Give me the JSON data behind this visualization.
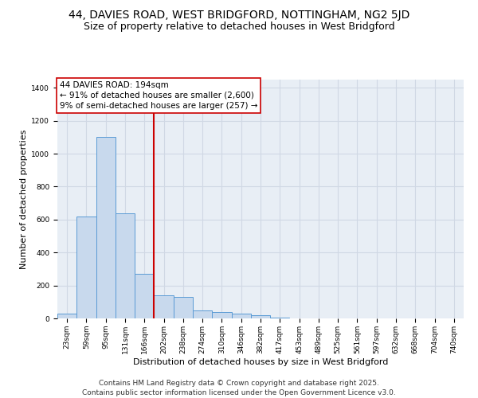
{
  "title_line1": "44, DAVIES ROAD, WEST BRIDGFORD, NOTTINGHAM, NG2 5JD",
  "title_line2": "Size of property relative to detached houses in West Bridgford",
  "xlabel": "Distribution of detached houses by size in West Bridgford",
  "ylabel": "Number of detached properties",
  "categories": [
    "23sqm",
    "59sqm",
    "95sqm",
    "131sqm",
    "166sqm",
    "202sqm",
    "238sqm",
    "274sqm",
    "310sqm",
    "346sqm",
    "382sqm",
    "417sqm",
    "453sqm",
    "489sqm",
    "525sqm",
    "561sqm",
    "597sqm",
    "632sqm",
    "668sqm",
    "704sqm",
    "740sqm"
  ],
  "values": [
    30,
    620,
    1100,
    640,
    270,
    140,
    130,
    50,
    40,
    30,
    20,
    5,
    2,
    1,
    1,
    0,
    0,
    0,
    0,
    0,
    0
  ],
  "bar_color": "#c8d9ed",
  "bar_edge_color": "#5b9bd5",
  "vline_x_index": 4.5,
  "vline_color": "#cc0000",
  "annotation_text": "44 DAVIES ROAD: 194sqm\n← 91% of detached houses are smaller (2,600)\n9% of semi-detached houses are larger (257) →",
  "annotation_box_color": "#cc0000",
  "ylim": [
    0,
    1450
  ],
  "yticks": [
    0,
    200,
    400,
    600,
    800,
    1000,
    1200,
    1400
  ],
  "grid_color": "#d0d8e4",
  "bg_color": "#e8eef5",
  "footer_line1": "Contains HM Land Registry data © Crown copyright and database right 2025.",
  "footer_line2": "Contains public sector information licensed under the Open Government Licence v3.0.",
  "title_fontsize": 10,
  "subtitle_fontsize": 9,
  "axis_label_fontsize": 8,
  "tick_fontsize": 6.5,
  "annotation_fontsize": 7.5,
  "footer_fontsize": 6.5
}
